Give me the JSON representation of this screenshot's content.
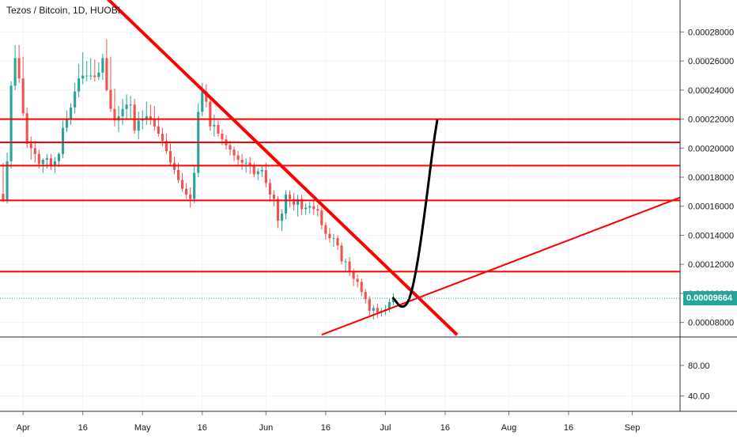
{
  "chart": {
    "title": "Tezos / Bitcoin, 1D, HUOBI",
    "current_price_label": "0.00009664",
    "price_axis": [
      "0.00028000",
      "0.00026000",
      "0.00024000",
      "0.00022000",
      "0.00020000",
      "0.00018000",
      "0.00016000",
      "0.00014000",
      "0.00012000",
      "0.00010000",
      "0.00008000"
    ],
    "indicator_axis": [
      "80.00",
      "40.00"
    ],
    "time_axis": [
      "Apr",
      "16",
      "May",
      "16",
      "Jun",
      "16",
      "Jul",
      "16",
      "Aug",
      "16",
      "Sep"
    ],
    "colors": {
      "up": "#26a69a",
      "down": "#ef5350",
      "drawing": "#ff0000",
      "projection": "#000000",
      "grid": "#f0f3fa",
      "price_line": "#26a69a"
    }
  },
  "chart_data": {
    "type": "candlestick",
    "title": "Tezos / Bitcoin, 1D, HUOBI",
    "x": [
      "Mar 27",
      "Mar 28",
      "Mar 29",
      "Mar 30",
      "Mar 31",
      "Apr 1",
      "Apr 2",
      "Apr 3",
      "Apr 4",
      "Apr 5",
      "Apr 6",
      "Apr 7",
      "Apr 8",
      "Apr 9",
      "Apr 10",
      "Apr 11",
      "Apr 12",
      "Apr 13",
      "Apr 14",
      "Apr 15",
      "Apr 16",
      "Apr 17",
      "Apr 18",
      "Apr 19",
      "Apr 20",
      "Apr 21",
      "Apr 22",
      "Apr 23",
      "Apr 24",
      "Apr 25",
      "Apr 26",
      "Apr 27",
      "Apr 28",
      "Apr 29",
      "Apr 30",
      "May 1",
      "May 2",
      "May 3",
      "May 4",
      "May 5",
      "May 6",
      "May 7",
      "May 8",
      "May 9",
      "May 10",
      "May 11",
      "May 12",
      "May 13",
      "May 14",
      "May 15",
      "May 16",
      "May 17",
      "May 18",
      "May 19",
      "May 20",
      "May 21",
      "May 22",
      "May 23",
      "May 24",
      "May 25",
      "May 26",
      "May 27",
      "May 28",
      "May 29",
      "May 30",
      "May 31",
      "Jun 1",
      "Jun 2",
      "Jun 3",
      "Jun 4",
      "Jun 5",
      "Jun 6",
      "Jun 7",
      "Jun 8",
      "Jun 9",
      "Jun 10",
      "Jun 11",
      "Jun 12",
      "Jun 13",
      "Jun 14",
      "Jun 15",
      "Jun 16",
      "Jun 17",
      "Jun 18",
      "Jun 19",
      "Jun 20",
      "Jun 21",
      "Jun 22",
      "Jun 23",
      "Jun 24",
      "Jun 25",
      "Jun 26",
      "Jun 27",
      "Jun 28",
      "Jun 29",
      "Jun 30",
      "Jul 1",
      "Jul 2",
      "Jul 3"
    ],
    "open": [
      0.0001685,
      0.000164,
      0.000191,
      0.000243,
      0.000262,
      0.000248,
      0.000224,
      0.000203,
      0.0002,
      0.000196,
      0.000189,
      0.000192,
      0.000193,
      0.000188,
      0.000191,
      0.000196,
      0.000214,
      0.00022,
      0.000228,
      0.000239,
      0.000248,
      0.00025,
      0.00025,
      0.00025,
      0.000249,
      0.000252,
      0.000262,
      0.00024,
      0.000227,
      0.000219,
      0.000222,
      0.000227,
      0.00023,
      0.00023,
      0.000212,
      0.000219,
      0.00022,
      0.000222,
      0.00022,
      0.000215,
      0.00021,
      0.000205,
      0.000198,
      0.00019,
      0.000185,
      0.000178,
      0.000172,
      0.000168,
      0.000165,
      0.000183,
      0.000225,
      0.000239,
      0.000232,
      0.000215,
      0.000216,
      0.00021,
      0.000206,
      0.000202,
      0.000199,
      0.000195,
      0.000192,
      0.00019,
      0.00019,
      0.000188,
      0.000182,
      0.000184,
      0.000185,
      0.000176,
      0.000168,
      0.000165,
      0.00015,
      0.000155,
      0.000168,
      0.000165,
      0.000161,
      0.000165,
      0.000158,
      0.000159,
      0.00016,
      0.000158,
      0.000157,
      0.000147,
      0.000141,
      0.000138,
      0.000138,
      0.000133,
      0.000122,
      0.000122,
      0.000115,
      0.00011,
      0.000108,
      0.000101,
      9.6e-05,
      8.8e-05,
      9e-05,
      8.7e-05,
      8.8e-05,
      8.9e-05,
      9.4e-05
    ],
    "high": [
      0.00019,
      0.000197,
      0.000246,
      0.000271,
      0.000271,
      0.000263,
      0.000228,
      0.000208,
      0.000205,
      0.000199,
      0.000193,
      0.000196,
      0.000196,
      0.000194,
      0.000197,
      0.000219,
      0.000226,
      0.000231,
      0.000245,
      0.000258,
      0.000266,
      0.00026,
      0.000262,
      0.000261,
      0.000259,
      0.000265,
      0.000275,
      0.000263,
      0.000241,
      0.000229,
      0.000234,
      0.000237,
      0.000236,
      0.000234,
      0.000225,
      0.000226,
      0.000232,
      0.00023,
      0.000229,
      0.000222,
      0.000214,
      0.00021,
      0.000203,
      0.000194,
      0.00019,
      0.000183,
      0.000176,
      0.000173,
      0.000188,
      0.000231,
      0.000245,
      0.000244,
      0.000236,
      0.000223,
      0.000219,
      0.000213,
      0.000209,
      0.000205,
      0.000201,
      0.000198,
      0.000196,
      0.000193,
      0.000194,
      0.00019,
      0.000186,
      0.000188,
      0.00019,
      0.000179,
      0.000171,
      0.000167,
      0.000158,
      0.000171,
      0.000171,
      0.000169,
      0.000168,
      0.000168,
      0.000162,
      0.000163,
      0.000164,
      0.000161,
      0.000159,
      0.000149,
      0.000145,
      0.000141,
      0.00014,
      0.000135,
      0.000124,
      0.000125,
      0.000117,
      0.000113,
      0.00011,
      0.000103,
      9.8e-05,
      9.2e-05,
      9.3e-05,
      9e-05,
      9.2e-05,
      9.6e-05,
      0.0001
    ],
    "low": [
      0.000163,
      0.000162,
      0.000186,
      0.00024,
      0.000245,
      0.000222,
      0.0002,
      0.000192,
      0.00019,
      0.000186,
      0.000183,
      0.000186,
      0.000185,
      0.000183,
      0.000187,
      0.000193,
      0.000211,
      0.000216,
      0.000224,
      0.000235,
      0.000244,
      0.000246,
      0.000247,
      0.000246,
      0.000247,
      0.000247,
      0.000239,
      0.000225,
      0.000215,
      0.000211,
      0.000216,
      0.00022,
      0.00022,
      0.00021,
      0.000206,
      0.000213,
      0.000216,
      0.000216,
      0.000212,
      0.000208,
      0.000201,
      0.000196,
      0.000188,
      0.000182,
      0.000176,
      0.00017,
      0.000165,
      0.000159,
      0.000162,
      0.00018,
      0.000222,
      0.000228,
      0.000212,
      0.000208,
      0.000208,
      0.000202,
      0.000199,
      0.000195,
      0.000191,
      0.000188,
      0.000185,
      0.000183,
      0.000182,
      0.00018,
      0.000178,
      0.00018,
      0.000173,
      0.000163,
      0.00016,
      0.000145,
      0.000143,
      0.000151,
      0.000159,
      0.000157,
      0.000153,
      0.000154,
      0.000154,
      0.000155,
      0.000154,
      0.000153,
      0.000144,
      0.000137,
      0.000135,
      0.000132,
      0.00013,
      0.00012,
      0.000115,
      0.000112,
      0.000105,
      0.000104,
      9.8e-05,
      9.3e-05,
      8.5e-05,
      8.2e-05,
      8.3e-05,
      8.4e-05,
      8.5e-05,
      8.7e-05,
      9.2e-05
    ],
    "close": [
      0.000164,
      0.000191,
      0.000243,
      0.000262,
      0.000248,
      0.000224,
      0.000203,
      0.0002,
      0.000196,
      0.000189,
      0.000192,
      0.000193,
      0.000188,
      0.000191,
      0.000196,
      0.000214,
      0.00022,
      0.000228,
      0.000239,
      0.000248,
      0.00025,
      0.00025,
      0.00025,
      0.000249,
      0.000252,
      0.000262,
      0.00024,
      0.000227,
      0.000219,
      0.000222,
      0.000227,
      0.00023,
      0.00023,
      0.000212,
      0.000219,
      0.00022,
      0.000222,
      0.00022,
      0.000215,
      0.00021,
      0.000205,
      0.000198,
      0.00019,
      0.000185,
      0.000178,
      0.000172,
      0.000168,
      0.000165,
      0.000183,
      0.000225,
      0.000239,
      0.000232,
      0.000215,
      0.000216,
      0.00021,
      0.000206,
      0.000202,
      0.000199,
      0.000195,
      0.000192,
      0.00019,
      0.00019,
      0.000188,
      0.000182,
      0.000184,
      0.000185,
      0.000176,
      0.000168,
      0.000165,
      0.00015,
      0.000155,
      0.000168,
      0.000165,
      0.000161,
      0.000165,
      0.000158,
      0.000159,
      0.00016,
      0.000158,
      0.000157,
      0.000147,
      0.000141,
      0.000138,
      0.000138,
      0.000133,
      0.000122,
      0.000122,
      0.000115,
      0.00011,
      0.000108,
      0.000101,
      9.6e-05,
      8.8e-05,
      9e-05,
      8.7e-05,
      8.8e-05,
      8.9e-05,
      9.4e-05,
      9.66e-05
    ],
    "ylim": [
      7e-05,
      0.000302
    ],
    "xlim": [
      "Mar 27",
      "Sep 13"
    ],
    "horizontal_levels": [
      0.00022,
      0.000204,
      0.000188,
      0.000164,
      0.000115
    ],
    "trend_lines": [
      {
        "from": [
          "Apr 18",
          0.000314
        ],
        "to": [
          "Jul 19",
          7.15e-05
        ]
      },
      {
        "from": [
          "Jun 15",
          7.15e-05
        ],
        "to": [
          "Sep 13",
          0.000166
        ]
      }
    ],
    "projection": [
      [
        "Jul 3",
        9.68e-05
      ],
      [
        "Jul 5",
        8.95e-05
      ],
      [
        "Jul 7",
        9.4e-05
      ],
      [
        "Jul 9",
        0.000119
      ],
      [
        "Jul 11",
        0.000158
      ],
      [
        "Jul 13",
        0.000202
      ],
      [
        "Jul 14",
        0.000219
      ]
    ],
    "current_price": 9.664e-05,
    "indicator_ylim": [
      20,
      115
    ],
    "grid": true
  }
}
